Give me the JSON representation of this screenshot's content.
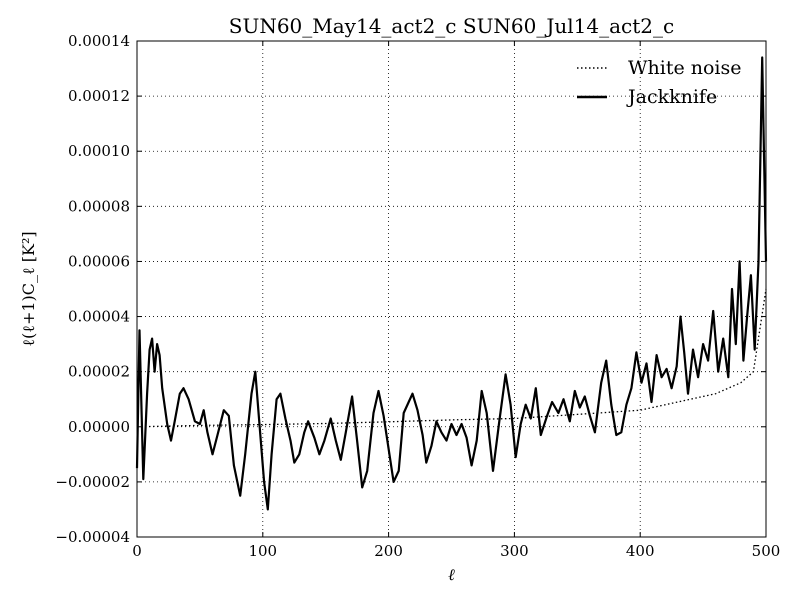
{
  "chart_data": {
    "type": "line",
    "title": "SUN60_May14_act2_c SUN60_Jul14_act2_c",
    "xlabel": "ℓ",
    "ylabel": "ℓ(ℓ+1)C_ℓ [K²]",
    "xlim": [
      0,
      500
    ],
    "ylim": [
      -4e-05,
      0.00014
    ],
    "grid": true,
    "legend_position": "top-right",
    "x_ticks": [
      0,
      100,
      200,
      300,
      400,
      500
    ],
    "x_tick_labels": [
      "0",
      "100",
      "200",
      "300",
      "400",
      "500"
    ],
    "y_ticks": [
      -4e-05,
      -2e-05,
      0,
      2e-05,
      4e-05,
      6e-05,
      8e-05,
      0.0001,
      0.00012,
      0.00014
    ],
    "y_tick_labels": [
      "−0.00004",
      "−0.00002",
      "0.00000",
      "0.00002",
      "0.00004",
      "0.00006",
      "0.00008",
      "0.00010",
      "0.00012",
      "0.00014"
    ],
    "series": [
      {
        "name": "White noise",
        "style": "dotted",
        "color": "#000000",
        "points": [
          [
            0,
            0
          ],
          [
            50,
            5e-07
          ],
          [
            100,
            8e-07
          ],
          [
            150,
            1.2e-06
          ],
          [
            200,
            1.8e-06
          ],
          [
            250,
            2.5e-06
          ],
          [
            300,
            3e-06
          ],
          [
            350,
            4.5e-06
          ],
          [
            400,
            6e-06
          ],
          [
            420,
            8e-06
          ],
          [
            440,
            1e-05
          ],
          [
            460,
            1.2e-05
          ],
          [
            480,
            1.6e-05
          ],
          [
            490,
            2e-05
          ],
          [
            495,
            3.5e-05
          ],
          [
            500,
            5e-05
          ]
        ]
      },
      {
        "name": "Jackknife",
        "style": "solid",
        "color": "#000000",
        "points": [
          [
            0,
            -1.5e-05
          ],
          [
            2,
            3.5e-05
          ],
          [
            5,
            -1.9e-05
          ],
          [
            8,
            1.2e-05
          ],
          [
            10,
            2.8e-05
          ],
          [
            12,
            3.2e-05
          ],
          [
            14,
            2e-05
          ],
          [
            16,
            3e-05
          ],
          [
            18,
            2.6e-05
          ],
          [
            20,
            1.4e-05
          ],
          [
            24,
            1e-06
          ],
          [
            27,
            -5e-06
          ],
          [
            30,
            2e-06
          ],
          [
            34,
            1.2e-05
          ],
          [
            37,
            1.4e-05
          ],
          [
            41,
            1e-05
          ],
          [
            46,
            2e-06
          ],
          [
            50,
            1e-06
          ],
          [
            53,
            6e-06
          ],
          [
            56,
            -2e-06
          ],
          [
            60,
            -1e-05
          ],
          [
            64,
            -3e-06
          ],
          [
            69,
            6e-06
          ],
          [
            73,
            4e-06
          ],
          [
            77,
            -1.4e-05
          ],
          [
            82,
            -2.5e-05
          ],
          [
            86,
            -1e-05
          ],
          [
            91,
            1.2e-05
          ],
          [
            94,
            2e-05
          ],
          [
            97,
            3e-06
          ],
          [
            101,
            -2e-05
          ],
          [
            104,
            -3e-05
          ],
          [
            107,
            -1e-05
          ],
          [
            111,
            1e-05
          ],
          [
            114,
            1.2e-05
          ],
          [
            118,
            3e-06
          ],
          [
            122,
            -5e-06
          ],
          [
            125,
            -1.3e-05
          ],
          [
            129,
            -1e-05
          ],
          [
            133,
            -2e-06
          ],
          [
            136,
            2e-06
          ],
          [
            141,
            -4e-06
          ],
          [
            145,
            -1e-05
          ],
          [
            149,
            -5e-06
          ],
          [
            154,
            3e-06
          ],
          [
            158,
            -5e-06
          ],
          [
            162,
            -1.2e-05
          ],
          [
            166,
            -2e-06
          ],
          [
            171,
            1.1e-05
          ],
          [
            175,
            -5e-06
          ],
          [
            179,
            -2.2e-05
          ],
          [
            183,
            -1.6e-05
          ],
          [
            188,
            5e-06
          ],
          [
            192,
            1.3e-05
          ],
          [
            196,
            4e-06
          ],
          [
            200,
            -8e-06
          ],
          [
            204,
            -2e-05
          ],
          [
            208,
            -1.6e-05
          ],
          [
            212,
            5e-06
          ],
          [
            216,
            9e-06
          ],
          [
            219,
            1.2e-05
          ],
          [
            223,
            6e-06
          ],
          [
            227,
            -3e-06
          ],
          [
            230,
            -1.3e-05
          ],
          [
            234,
            -7e-06
          ],
          [
            238,
            2e-06
          ],
          [
            242,
            -2e-06
          ],
          [
            246,
            -5e-06
          ],
          [
            250,
            1e-06
          ],
          [
            254,
            -3e-06
          ],
          [
            258,
            1e-06
          ],
          [
            262,
            -4e-06
          ],
          [
            266,
            -1.4e-05
          ],
          [
            270,
            -5e-06
          ],
          [
            274,
            1.3e-05
          ],
          [
            278,
            5e-06
          ],
          [
            283,
            -1.6e-05
          ],
          [
            288,
            2e-06
          ],
          [
            293,
            1.9e-05
          ],
          [
            297,
            8e-06
          ],
          [
            301,
            -1.1e-05
          ],
          [
            305,
            1e-06
          ],
          [
            309,
            8e-06
          ],
          [
            313,
            3e-06
          ],
          [
            317,
            1.4e-05
          ],
          [
            321,
            -3e-06
          ],
          [
            326,
            4e-06
          ],
          [
            330,
            9e-06
          ],
          [
            335,
            5e-06
          ],
          [
            339,
            1e-05
          ],
          [
            344,
            2e-06
          ],
          [
            348,
            1.3e-05
          ],
          [
            352,
            7e-06
          ],
          [
            356,
            1.1e-05
          ],
          [
            360,
            4e-06
          ],
          [
            364,
            -2e-06
          ],
          [
            369,
            1.6e-05
          ],
          [
            373,
            2.4e-05
          ],
          [
            377,
            8e-06
          ],
          [
            381,
            -3e-06
          ],
          [
            385,
            -2e-06
          ],
          [
            389,
            8e-06
          ],
          [
            393,
            1.4e-05
          ],
          [
            397,
            2.7e-05
          ],
          [
            401,
            1.6e-05
          ],
          [
            405,
            2.3e-05
          ],
          [
            409,
            9e-06
          ],
          [
            413,
            2.6e-05
          ],
          [
            417,
            1.8e-05
          ],
          [
            421,
            2.1e-05
          ],
          [
            425,
            1.4e-05
          ],
          [
            429,
            2.2e-05
          ],
          [
            432,
            4e-05
          ],
          [
            435,
            2.7e-05
          ],
          [
            438,
            1.2e-05
          ],
          [
            442,
            2.8e-05
          ],
          [
            446,
            1.8e-05
          ],
          [
            450,
            3e-05
          ],
          [
            454,
            2.4e-05
          ],
          [
            458,
            4.2e-05
          ],
          [
            462,
            2e-05
          ],
          [
            466,
            3.2e-05
          ],
          [
            470,
            1.8e-05
          ],
          [
            473,
            5e-05
          ],
          [
            476,
            3e-05
          ],
          [
            479,
            6e-05
          ],
          [
            482,
            2.4e-05
          ],
          [
            485,
            4e-05
          ],
          [
            488,
            5.5e-05
          ],
          [
            491,
            2.8e-05
          ],
          [
            494,
            6e-05
          ],
          [
            497,
            0.000134
          ],
          [
            500,
            6e-05
          ]
        ]
      }
    ]
  }
}
